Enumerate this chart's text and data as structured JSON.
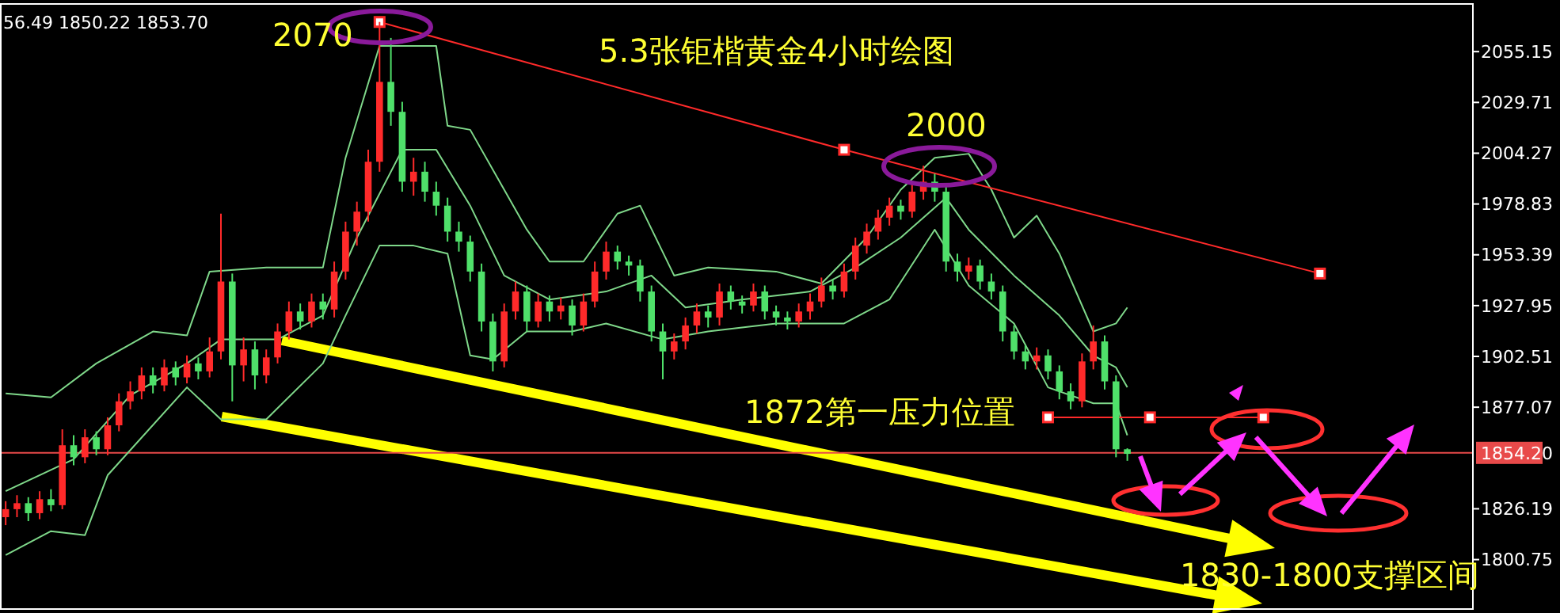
{
  "chart_data": {
    "type": "candlestick",
    "title": "5.3张钜楷黄金4小时绘图",
    "categories": [
      null,
      null,
      null,
      null,
      null,
      null,
      null,
      null,
      null,
      null,
      null,
      null,
      null,
      null,
      null,
      null,
      null,
      null,
      null,
      null,
      null,
      null,
      null,
      null,
      null,
      null,
      null,
      null,
      null,
      null,
      null,
      null,
      null,
      null,
      null,
      null,
      null,
      null,
      null,
      null,
      null,
      null,
      null,
      null,
      null,
      null,
      null,
      null,
      null,
      null,
      null,
      null,
      null,
      null,
      null,
      null,
      null,
      null,
      null,
      null,
      null,
      null,
      null,
      null,
      null,
      null,
      null,
      null,
      null,
      null,
      null,
      null,
      null,
      null,
      null,
      null,
      null,
      null,
      null,
      null,
      null,
      null,
      null,
      null,
      null,
      null,
      null,
      null,
      null,
      null,
      null,
      null,
      null,
      null,
      null,
      null,
      null,
      null,
      null,
      null,
      null,
      null,
      null,
      null,
      null,
      null,
      null,
      null,
      null,
      null,
      null,
      null,
      null,
      null,
      null,
      null,
      null,
      null,
      null,
      null,
      null,
      null,
      null,
      null,
      null,
      null,
      null,
      null,
      null,
      null
    ],
    "ohlc": [
      [
        1822,
        1830,
        1818,
        1826
      ],
      [
        1826,
        1833,
        1822,
        1829
      ],
      [
        1829,
        1832,
        1820,
        1824
      ],
      [
        1824,
        1835,
        1821,
        1831
      ],
      [
        1831,
        1836,
        1825,
        1828
      ],
      [
        1828,
        1866,
        1826,
        1858
      ],
      [
        1858,
        1863,
        1848,
        1852
      ],
      [
        1852,
        1866,
        1849,
        1862
      ],
      [
        1862,
        1865,
        1853,
        1856
      ],
      [
        1856,
        1872,
        1853,
        1868
      ],
      [
        1868,
        1884,
        1865,
        1880
      ],
      [
        1880,
        1890,
        1876,
        1885
      ],
      [
        1885,
        1897,
        1881,
        1893
      ],
      [
        1893,
        1897,
        1884,
        1888
      ],
      [
        1888,
        1901,
        1885,
        1897
      ],
      [
        1897,
        1900,
        1888,
        1892
      ],
      [
        1892,
        1903,
        1889,
        1899
      ],
      [
        1899,
        1902,
        1891,
        1895
      ],
      [
        1895,
        1912,
        1892,
        1905
      ],
      [
        1905,
        1974,
        1901,
        1940
      ],
      [
        1940,
        1944,
        1880,
        1898
      ],
      [
        1898,
        1912,
        1890,
        1906
      ],
      [
        1906,
        1910,
        1886,
        1893
      ],
      [
        1893,
        1906,
        1889,
        1902
      ],
      [
        1902,
        1919,
        1899,
        1915
      ],
      [
        1915,
        1930,
        1911,
        1925
      ],
      [
        1925,
        1929,
        1916,
        1920
      ],
      [
        1920,
        1934,
        1917,
        1930
      ],
      [
        1930,
        1934,
        1921,
        1926
      ],
      [
        1926,
        1950,
        1922,
        1945
      ],
      [
        1945,
        1970,
        1941,
        1965
      ],
      [
        1965,
        1980,
        1958,
        1975
      ],
      [
        1975,
        2006,
        1970,
        2000
      ],
      [
        2000,
        2070,
        1995,
        2040
      ],
      [
        2040,
        2062,
        2018,
        2025
      ],
      [
        2025,
        2030,
        1985,
        1990
      ],
      [
        1990,
        2002,
        1983,
        1995
      ],
      [
        1995,
        2000,
        1980,
        1985
      ],
      [
        1985,
        1990,
        1973,
        1978
      ],
      [
        1978,
        1982,
        1960,
        1965
      ],
      [
        1965,
        1970,
        1955,
        1960
      ],
      [
        1960,
        1963,
        1940,
        1945
      ],
      [
        1945,
        1949,
        1915,
        1920
      ],
      [
        1920,
        1924,
        1895,
        1900
      ],
      [
        1900,
        1929,
        1897,
        1925
      ],
      [
        1925,
        1940,
        1921,
        1935
      ],
      [
        1935,
        1938,
        1915,
        1920
      ],
      [
        1920,
        1934,
        1917,
        1930
      ],
      [
        1930,
        1933,
        1920,
        1925
      ],
      [
        1925,
        1932,
        1921,
        1928
      ],
      [
        1928,
        1931,
        1913,
        1918
      ],
      [
        1918,
        1934,
        1915,
        1930
      ],
      [
        1930,
        1950,
        1927,
        1945
      ],
      [
        1945,
        1960,
        1941,
        1955
      ],
      [
        1955,
        1958,
        1946,
        1950
      ],
      [
        1950,
        1953,
        1943,
        1948
      ],
      [
        1948,
        1951,
        1930,
        1935
      ],
      [
        1935,
        1938,
        1910,
        1915
      ],
      [
        1915,
        1919,
        1891,
        1905
      ],
      [
        1905,
        1914,
        1901,
        1910
      ],
      [
        1910,
        1922,
        1906,
        1918
      ],
      [
        1918,
        1929,
        1914,
        1925
      ],
      [
        1925,
        1928,
        1917,
        1922
      ],
      [
        1922,
        1939,
        1918,
        1935
      ],
      [
        1935,
        1938,
        1926,
        1930
      ],
      [
        1930,
        1933,
        1924,
        1928
      ],
      [
        1928,
        1939,
        1925,
        1935
      ],
      [
        1935,
        1938,
        1921,
        1925
      ],
      [
        1925,
        1928,
        1918,
        1922
      ],
      [
        1922,
        1925,
        1916,
        1920
      ],
      [
        1920,
        1929,
        1917,
        1925
      ],
      [
        1925,
        1934,
        1921,
        1930
      ],
      [
        1930,
        1942,
        1927,
        1938
      ],
      [
        1938,
        1941,
        1931,
        1935
      ],
      [
        1935,
        1949,
        1932,
        1945
      ],
      [
        1945,
        1962,
        1941,
        1958
      ],
      [
        1958,
        1969,
        1954,
        1965
      ],
      [
        1965,
        1976,
        1961,
        1972
      ],
      [
        1972,
        1982,
        1968,
        1978
      ],
      [
        1978,
        1981,
        1971,
        1975
      ],
      [
        1975,
        1989,
        1972,
        1985
      ],
      [
        1985,
        1998,
        1981,
        1990
      ],
      [
        1990,
        1994,
        1980,
        1985
      ],
      [
        1985,
        1988,
        1945,
        1950
      ],
      [
        1950,
        1954,
        1940,
        1945
      ],
      [
        1945,
        1952,
        1941,
        1948
      ],
      [
        1948,
        1951,
        1936,
        1940
      ],
      [
        1940,
        1944,
        1931,
        1935
      ],
      [
        1935,
        1938,
        1910,
        1915
      ],
      [
        1915,
        1918,
        1901,
        1905
      ],
      [
        1905,
        1908,
        1896,
        1900
      ],
      [
        1900,
        1907,
        1896,
        1903
      ],
      [
        1903,
        1906,
        1891,
        1895
      ],
      [
        1895,
        1898,
        1881,
        1885
      ],
      [
        1885,
        1889,
        1876,
        1880
      ],
      [
        1880,
        1904,
        1877,
        1900
      ],
      [
        1900,
        1918,
        1896,
        1910
      ],
      [
        1910,
        1913,
        1886,
        1890
      ],
      [
        1890,
        1893,
        1852,
        1856
      ],
      [
        1856,
        1856.49,
        1850.22,
        1853.7
      ],
      null,
      null,
      null,
      null,
      null,
      null,
      null,
      null,
      null,
      null,
      null,
      null,
      null,
      null,
      null,
      null,
      null,
      null,
      null,
      null,
      null,
      null,
      null,
      null,
      null,
      null,
      null,
      null,
      null,
      null
    ],
    "series": [
      {
        "type": "line",
        "color": "#7fd88a",
        "values": [
          1884,
          null,
          null,
          null,
          1882,
          null,
          null,
          null,
          1899,
          null,
          null,
          null,
          null,
          1915,
          null,
          null,
          1913,
          null,
          1945,
          null,
          null,
          null,
          null,
          1947,
          null,
          null,
          null,
          null,
          1947,
          null,
          2002,
          null,
          null,
          2058,
          null,
          null,
          null,
          null,
          2058,
          2018,
          null,
          2016,
          null,
          null,
          1986,
          null,
          1966,
          null,
          1950,
          null,
          null,
          1950,
          null,
          null,
          1974,
          null,
          1978,
          null,
          null,
          1943,
          null,
          null,
          1947,
          null,
          null,
          null,
          null,
          null,
          1945,
          null,
          null,
          null,
          1939,
          null,
          null,
          null,
          1962,
          null,
          null,
          1986,
          null,
          null,
          2002,
          null,
          null,
          2004,
          null,
          1986,
          null,
          1962,
          null,
          1973,
          null,
          1954,
          null,
          null,
          1915,
          null,
          1919,
          1927,
          null,
          null,
          null,
          null,
          null,
          null,
          null,
          null,
          null,
          null,
          null,
          null,
          null,
          null,
          null,
          null,
          null,
          null,
          null,
          null,
          null,
          null,
          null,
          null,
          null,
          null,
          null,
          null,
          null,
          null
        ]
      },
      {
        "type": "line",
        "color": "#7fd88a",
        "values": [
          1835,
          null,
          null,
          null,
          null,
          null,
          1851,
          null,
          null,
          null,
          null,
          1883,
          null,
          null,
          null,
          null,
          1899,
          null,
          null,
          1911,
          null,
          null,
          null,
          null,
          1911,
          null,
          null,
          null,
          1923,
          null,
          null,
          1962,
          null,
          null,
          null,
          2006,
          null,
          null,
          2006,
          null,
          null,
          1978,
          null,
          null,
          1943,
          null,
          null,
          null,
          1931,
          null,
          null,
          null,
          null,
          1935,
          null,
          null,
          null,
          1943,
          null,
          null,
          1927,
          null,
          null,
          null,
          null,
          1931,
          null,
          null,
          null,
          null,
          null,
          1935,
          null,
          null,
          null,
          1947,
          null,
          null,
          null,
          1962,
          null,
          null,
          null,
          1982,
          null,
          1966,
          null,
          null,
          null,
          1943,
          null,
          null,
          null,
          1923,
          null,
          null,
          1903,
          null,
          1897,
          1887,
          null,
          null,
          null,
          null,
          null,
          null,
          null,
          null,
          null,
          null,
          null,
          null,
          null,
          null,
          null,
          null,
          null,
          null,
          null,
          null,
          null,
          null,
          null,
          null,
          null,
          null,
          null,
          null,
          null,
          null
        ]
      },
      {
        "type": "line",
        "color": "#7fd88a",
        "values": [
          1803,
          null,
          null,
          null,
          1815,
          null,
          null,
          1813,
          null,
          1843,
          null,
          null,
          null,
          null,
          null,
          null,
          1887,
          null,
          null,
          1871,
          null,
          null,
          null,
          1871,
          null,
          null,
          null,
          null,
          1899,
          null,
          1923,
          null,
          null,
          1958,
          null,
          null,
          1958,
          null,
          null,
          1954,
          null,
          1903,
          null,
          1901,
          null,
          null,
          1915,
          null,
          null,
          null,
          1915,
          null,
          null,
          1919,
          null,
          null,
          null,
          null,
          1911,
          null,
          null,
          null,
          1915,
          null,
          null,
          null,
          null,
          null,
          1919,
          null,
          null,
          null,
          null,
          null,
          1919,
          null,
          null,
          null,
          1931,
          null,
          null,
          null,
          1966,
          null,
          null,
          1938,
          null,
          null,
          null,
          1919,
          null,
          null,
          1887,
          null,
          null,
          null,
          1879,
          null,
          1879,
          1863,
          null,
          null,
          null,
          null,
          null,
          null,
          null,
          null,
          null,
          null,
          null,
          null,
          null,
          null,
          null,
          null,
          null,
          null,
          null,
          null,
          null,
          null,
          null,
          null,
          null,
          null,
          null,
          null,
          null,
          null
        ]
      },
      {
        "type": "line",
        "color": "#ff2a2a",
        "marker": "square",
        "values": [
          null,
          null,
          null,
          null,
          null,
          null,
          null,
          null,
          null,
          null,
          null,
          null,
          null,
          null,
          null,
          null,
          null,
          null,
          null,
          null,
          null,
          null,
          null,
          null,
          null,
          null,
          null,
          null,
          null,
          null,
          null,
          null,
          null,
          2070,
          null,
          null,
          null,
          null,
          null,
          null,
          null,
          null,
          null,
          null,
          null,
          null,
          null,
          null,
          null,
          null,
          null,
          null,
          null,
          null,
          null,
          null,
          null,
          null,
          null,
          null,
          null,
          null,
          null,
          null,
          null,
          null,
          null,
          null,
          null,
          null,
          null,
          null,
          null,
          null,
          2006,
          null,
          null,
          null,
          null,
          null,
          null,
          null,
          null,
          null,
          null,
          null,
          null,
          null,
          null,
          null,
          null,
          null,
          null,
          null,
          null,
          null,
          null,
          null,
          null,
          null,
          null,
          null,
          null,
          null,
          null,
          null,
          null,
          null,
          null,
          null,
          null,
          null,
          null,
          null,
          null,
          null,
          1944,
          null,
          null,
          null,
          null,
          null,
          null,
          null,
          null,
          null,
          null,
          null,
          null,
          null
        ]
      },
      {
        "type": "line",
        "color": "#ff2a2a",
        "marker": "square",
        "values": [
          null,
          null,
          null,
          null,
          null,
          null,
          null,
          null,
          null,
          null,
          null,
          null,
          null,
          null,
          null,
          null,
          null,
          null,
          null,
          null,
          null,
          null,
          null,
          null,
          null,
          null,
          null,
          null,
          null,
          null,
          null,
          null,
          null,
          null,
          null,
          null,
          null,
          null,
          null,
          null,
          null,
          null,
          null,
          null,
          null,
          null,
          null,
          null,
          null,
          null,
          null,
          null,
          null,
          null,
          null,
          null,
          null,
          null,
          null,
          null,
          null,
          null,
          null,
          null,
          null,
          null,
          null,
          null,
          null,
          null,
          null,
          null,
          null,
          null,
          null,
          null,
          null,
          null,
          null,
          null,
          null,
          null,
          null,
          null,
          null,
          null,
          null,
          null,
          null,
          null,
          null,
          null,
          1872,
          null,
          null,
          null,
          null,
          null,
          null,
          null,
          null,
          1872,
          null,
          null,
          null,
          null,
          null,
          null,
          null,
          null,
          null,
          1872,
          null,
          null,
          null,
          null,
          null,
          null,
          null,
          null,
          null,
          null,
          null,
          null,
          null,
          null,
          null,
          null,
          null,
          null
        ]
      }
    ],
    "ylim": [
      1774,
      2081
    ],
    "yticks": [
      2055.15,
      2029.71,
      2004.27,
      1978.83,
      1953.39,
      1927.95,
      1902.51,
      1877.07,
      1826.19,
      1800.75
    ],
    "ref_lines": [
      {
        "axis": "y",
        "value": 1854.2,
        "label": "1854.20",
        "color": "#e84a4a"
      }
    ],
    "annotations": [
      "2070",
      "2000",
      "1872第一压力位置",
      "1830-1800支撑区间",
      "56.49 1850.22 1853.70"
    ],
    "grid": false
  }
}
